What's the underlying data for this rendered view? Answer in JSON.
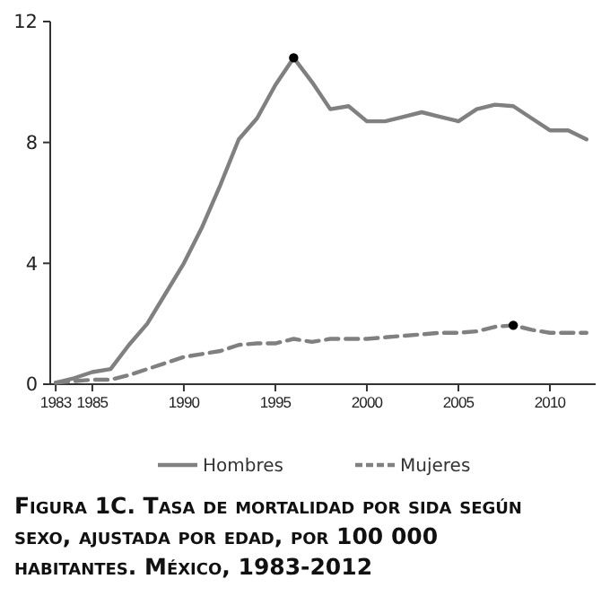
{
  "chart_data": {
    "type": "line",
    "title": "Figura 1C. Tasa de mortalidad por sida según sexo, ajustada por edad, por 100 000 habitantes. México, 1983-2012",
    "x": [
      1983,
      1984,
      1985,
      1986,
      1987,
      1988,
      1989,
      1990,
      1991,
      1992,
      1993,
      1994,
      1995,
      1996,
      1997,
      1998,
      1999,
      2000,
      2001,
      2002,
      2003,
      2004,
      2005,
      2006,
      2007,
      2008,
      2009,
      2010,
      2011,
      2012
    ],
    "series": [
      {
        "name": "Hombres",
        "color": "#808080",
        "line_style": "solid",
        "values": [
          0.05,
          0.2,
          0.4,
          0.5,
          1.3,
          2.0,
          3.0,
          4.0,
          5.2,
          6.6,
          8.1,
          8.8,
          9.9,
          10.8,
          10.0,
          9.1,
          9.2,
          8.7,
          8.7,
          8.85,
          9.0,
          8.85,
          8.7,
          9.1,
          9.25,
          9.2,
          8.8,
          8.4,
          8.4,
          8.1
        ]
      },
      {
        "name": "Mujeres",
        "color": "#808080",
        "line_style": "dashed",
        "values": [
          0.05,
          0.1,
          0.15,
          0.15,
          0.3,
          0.5,
          0.7,
          0.9,
          1.0,
          1.1,
          1.3,
          1.35,
          1.35,
          1.5,
          1.4,
          1.5,
          1.5,
          1.5,
          1.55,
          1.6,
          1.65,
          1.7,
          1.7,
          1.75,
          1.9,
          1.95,
          1.8,
          1.7,
          1.7,
          1.7
        ]
      },
      {
        "type": "scatter",
        "color": "#000000",
        "marker": "circle",
        "x": [
          1996,
          2008
        ],
        "values": [
          10.8,
          1.95
        ]
      }
    ],
    "xlim": [
      1982.7,
      2012.5
    ],
    "xticks": [
      1983,
      1985,
      1990,
      1995,
      2000,
      2005,
      2010
    ],
    "ylim": [
      0,
      12
    ],
    "yticks": [
      0,
      4,
      8,
      12
    ],
    "grid": false,
    "legend": "bottom"
  }
}
